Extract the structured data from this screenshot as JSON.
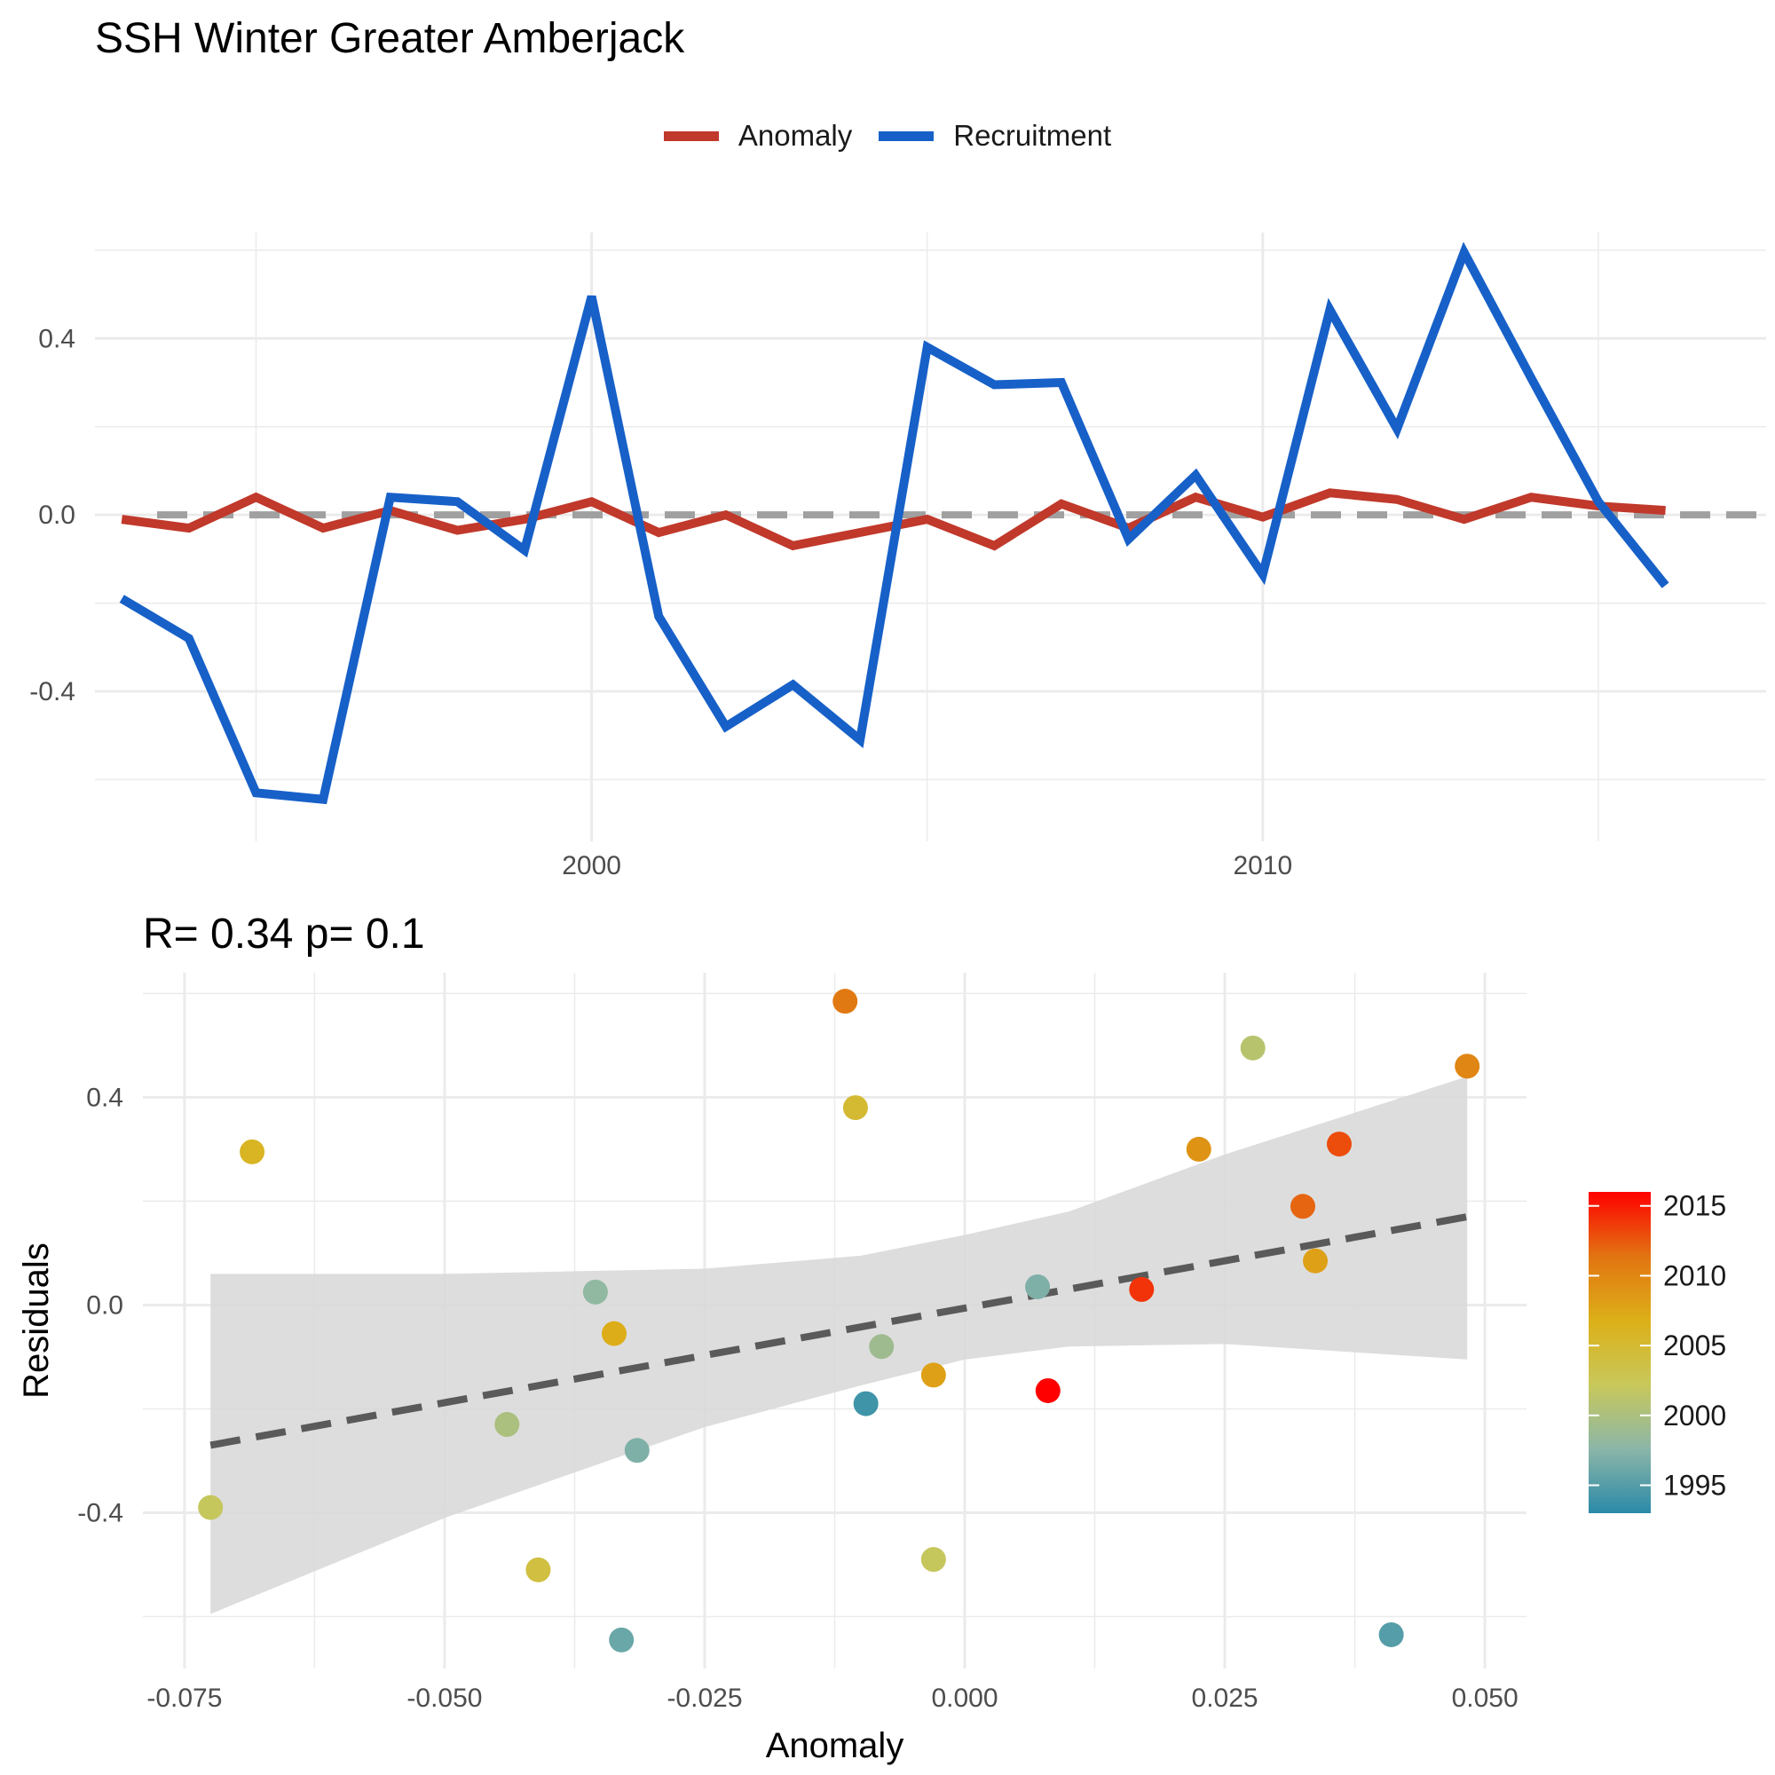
{
  "title": "SSH Winter Greater Amberjack",
  "chart_data": [
    {
      "type": "line",
      "legend": {
        "position": "top",
        "entries": [
          {
            "name": "Anomaly",
            "color": "#c0392b"
          },
          {
            "name": "Recruitment",
            "color": "#1760c8"
          }
        ]
      },
      "x_ticks": [
        2000,
        2010
      ],
      "y_ticks": [
        -0.4,
        0.0,
        0.4
      ],
      "xlim": [
        1992.6,
        2017.5
      ],
      "ylim": [
        -0.74,
        0.64
      ],
      "reference_line": {
        "y": 0,
        "style": "dashed",
        "color": "#a0a0a0"
      },
      "x": [
        1993,
        1994,
        1995,
        1996,
        1997,
        1998,
        1999,
        2000,
        2001,
        2002,
        2003,
        2004,
        2005,
        2006,
        2007,
        2008,
        2009,
        2010,
        2011,
        2012,
        2013,
        2014,
        2015,
        2016
      ],
      "series": [
        {
          "name": "Anomaly",
          "color": "#c0392b",
          "values": [
            -0.01,
            -0.03,
            0.04,
            -0.03,
            0.01,
            -0.035,
            -0.01,
            0.03,
            -0.04,
            0.0,
            -0.07,
            -0.04,
            -0.01,
            -0.07,
            0.025,
            -0.03,
            0.04,
            -0.005,
            0.05,
            0.035,
            -0.01,
            0.04,
            0.02,
            0.01
          ]
        },
        {
          "name": "Recruitment",
          "color": "#1760c8",
          "values": [
            -0.19,
            -0.28,
            -0.63,
            -0.645,
            0.04,
            0.03,
            -0.08,
            0.495,
            -0.23,
            -0.48,
            -0.385,
            -0.51,
            0.38,
            0.295,
            0.3,
            -0.055,
            0.09,
            -0.135,
            0.465,
            0.195,
            0.595,
            0.31,
            0.03,
            -0.16
          ]
        }
      ]
    },
    {
      "type": "scatter",
      "subtitle": "R= 0.34  p= 0.1",
      "xlabel": "Anomaly",
      "ylabel": "Residuals",
      "x_tick_labels": [
        "-0.075",
        "-0.050",
        "-0.025",
        "0.000",
        "0.025",
        "0.050"
      ],
      "x_ticks": [
        -0.075,
        -0.05,
        -0.025,
        0.0,
        0.025,
        0.05
      ],
      "y_tick_labels": [
        "-0.4",
        "0.0",
        "0.4"
      ],
      "y_ticks": [
        -0.4,
        0.0,
        0.4
      ],
      "xlim": [
        -0.079,
        0.054
      ],
      "ylim": [
        -0.7,
        0.64
      ],
      "points": [
        {
          "x": -0.0725,
          "y": -0.39,
          "year": 2002
        },
        {
          "x": -0.0685,
          "y": 0.295,
          "year": 2006
        },
        {
          "x": -0.044,
          "y": -0.23,
          "year": 2000
        },
        {
          "x": -0.041,
          "y": -0.51,
          "year": 2004
        },
        {
          "x": -0.0355,
          "y": 0.025,
          "year": 1998
        },
        {
          "x": -0.0337,
          "y": -0.055,
          "year": 2007
        },
        {
          "x": -0.033,
          "y": -0.645,
          "year": 1996
        },
        {
          "x": -0.0315,
          "y": -0.28,
          "year": 1997
        },
        {
          "x": -0.0115,
          "y": 0.585,
          "year": 2011
        },
        {
          "x": -0.0105,
          "y": 0.38,
          "year": 2005
        },
        {
          "x": -0.0095,
          "y": -0.19,
          "year": 1994
        },
        {
          "x": -0.008,
          "y": -0.08,
          "year": 1999
        },
        {
          "x": -0.003,
          "y": -0.135,
          "year": 2008
        },
        {
          "x": -0.003,
          "y": -0.49,
          "year": 2002
        },
        {
          "x": 0.007,
          "y": 0.035,
          "year": 1997
        },
        {
          "x": 0.008,
          "y": -0.165,
          "year": 2016
        },
        {
          "x": 0.017,
          "y": 0.03,
          "year": 2014
        },
        {
          "x": 0.0225,
          "y": 0.3,
          "year": 2009
        },
        {
          "x": 0.0277,
          "y": 0.495,
          "year": 2001
        },
        {
          "x": 0.0325,
          "y": 0.19,
          "year": 2012
        },
        {
          "x": 0.0337,
          "y": 0.085,
          "year": 2008
        },
        {
          "x": 0.036,
          "y": 0.31,
          "year": 2013
        },
        {
          "x": 0.041,
          "y": -0.635,
          "year": 1995
        },
        {
          "x": 0.0483,
          "y": 0.46,
          "year": 2010
        }
      ],
      "fit_line": {
        "x": [
          -0.0725,
          0.0483
        ],
        "y": [
          -0.27,
          0.17
        ],
        "style": "dashed",
        "color": "#5a5a5a"
      },
      "confidence_band": {
        "x": [
          -0.0725,
          -0.05,
          -0.025,
          -0.01,
          0.0,
          0.01,
          0.025,
          0.0483
        ],
        "lower": [
          -0.595,
          -0.41,
          -0.235,
          -0.155,
          -0.105,
          -0.08,
          -0.075,
          -0.105
        ],
        "upper": [
          0.06,
          0.06,
          0.07,
          0.095,
          0.135,
          0.18,
          0.29,
          0.44
        ]
      },
      "colorbar": {
        "ticks": [
          1995,
          2000,
          2005,
          2010,
          2015
        ],
        "range": [
          1993,
          2016
        ],
        "gradient": [
          "#2a8aa8",
          "#8cb6a8",
          "#c8c85a",
          "#dcb018",
          "#e27412",
          "#ff0000"
        ]
      }
    }
  ]
}
